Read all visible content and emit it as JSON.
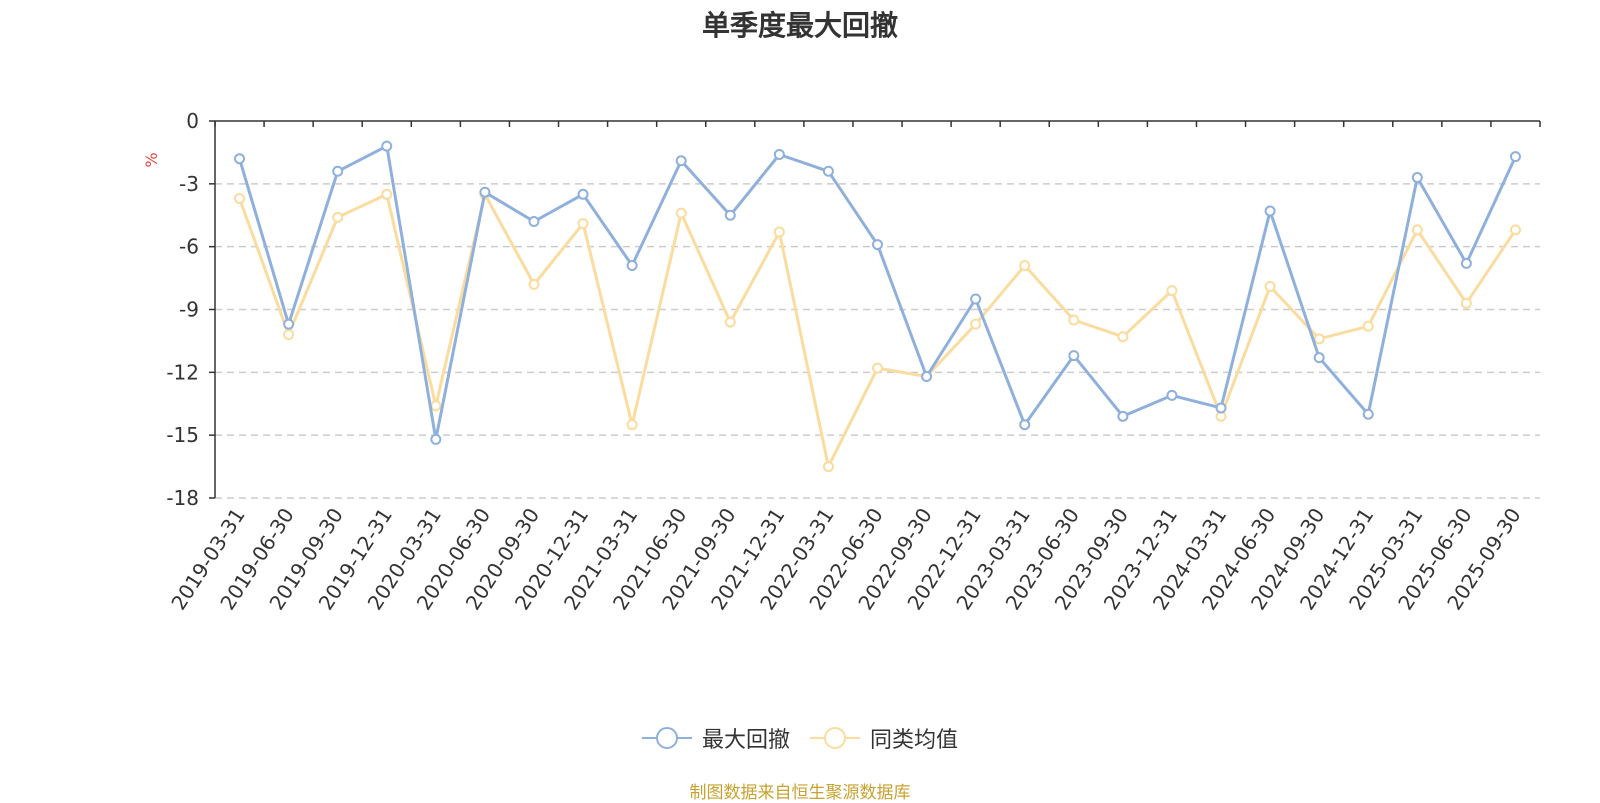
{
  "chart_data": {
    "type": "line",
    "title": "单季度最大回撤",
    "ylabel": "%",
    "xlabel": "",
    "ylim": [
      -18,
      0
    ],
    "yticks": [
      0,
      -3,
      -6,
      -9,
      -12,
      -15,
      -18
    ],
    "categories": [
      "2019-03-31",
      "2019-06-30",
      "2019-09-30",
      "2019-12-31",
      "2020-03-31",
      "2020-06-30",
      "2020-09-30",
      "2020-12-31",
      "2021-03-31",
      "2021-06-30",
      "2021-09-30",
      "2021-12-31",
      "2022-03-31",
      "2022-06-30",
      "2022-09-30",
      "2022-12-31",
      "2023-03-31",
      "2023-06-30",
      "2023-09-30",
      "2023-12-31",
      "2024-03-31",
      "2024-06-30",
      "2024-09-30",
      "2024-12-31",
      "2025-03-31",
      "2025-06-30",
      "2025-09-30"
    ],
    "series": [
      {
        "name": "最大回撤",
        "color": "#8fb0dc",
        "values": [
          -1.8,
          -9.7,
          -2.4,
          -1.2,
          -15.2,
          -3.4,
          -4.8,
          -3.5,
          -6.9,
          -1.9,
          -4.5,
          -1.6,
          -2.4,
          -5.9,
          -12.2,
          -8.5,
          -14.5,
          -11.2,
          -14.1,
          -13.1,
          -13.7,
          -4.3,
          -11.3,
          -14.0,
          -2.7,
          -6.8,
          -1.7
        ]
      },
      {
        "name": "同类均值",
        "color": "#fbdc9f",
        "values": [
          -3.7,
          -10.2,
          -4.6,
          -3.5,
          -13.6,
          -3.5,
          -7.8,
          -4.9,
          -14.5,
          -4.4,
          -9.6,
          -5.3,
          -16.5,
          -11.8,
          -12.2,
          -9.7,
          -6.9,
          -9.5,
          -10.3,
          -8.1,
          -14.1,
          -7.9,
          -10.4,
          -9.8,
          -5.2,
          -8.7,
          -5.2
        ]
      }
    ],
    "legend_position": "bottom-center",
    "grid": true
  },
  "source_note": {
    "text": "制图数据来自恒生聚源数据库",
    "color": "#c9a22e"
  }
}
